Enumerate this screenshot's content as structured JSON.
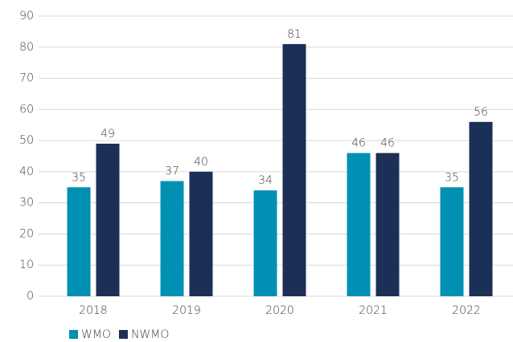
{
  "chart_data": {
    "type": "bar",
    "categories": [
      "2018",
      "2019",
      "2020",
      "2021",
      "2022"
    ],
    "series": [
      {
        "name": "WMO",
        "color": "#0090b4",
        "values": [
          35,
          37,
          34,
          46,
          35
        ]
      },
      {
        "name": "NWMO",
        "color": "#1c2f57",
        "values": [
          49,
          40,
          81,
          46,
          56
        ]
      }
    ],
    "ylim": [
      0,
      90
    ],
    "yticks": [
      0,
      10,
      20,
      30,
      40,
      50,
      60,
      70,
      80,
      90
    ],
    "grid": true,
    "legend": "bottom-left"
  }
}
